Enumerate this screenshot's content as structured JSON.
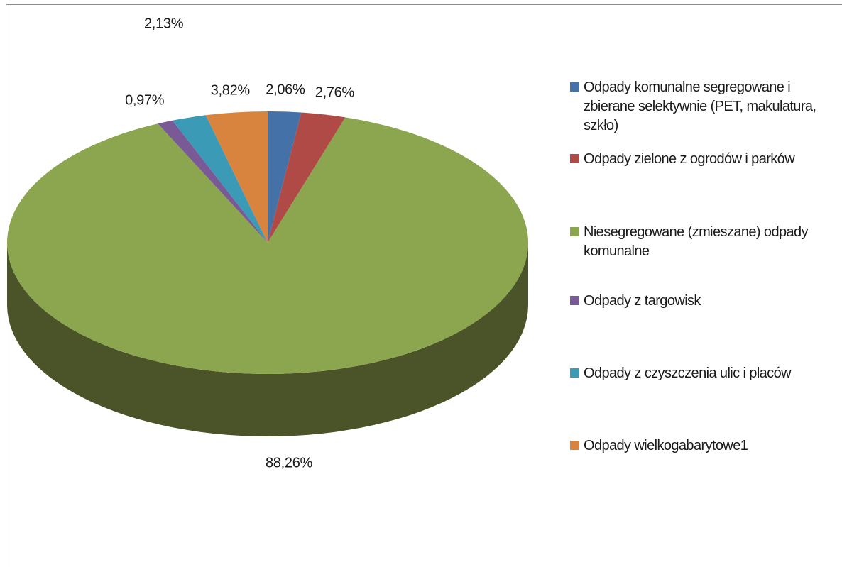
{
  "chart_data": {
    "type": "pie",
    "title": "",
    "series": [
      {
        "values": [
          2.06,
          2.76,
          88.26,
          0.97,
          2.13,
          3.82
        ]
      }
    ],
    "categories": [
      "Odpady komunalne segregowane i zbierane selektywnie (PET, makulatura, szkło)",
      "Odpady zielone z ogrodów i parków",
      "Niesegregowane (zmieszane) odpady komunalne",
      "Odpady z targowisk",
      "Odpady z czyszczenia ulic i placów",
      "Odpady wielkogabarytowe1"
    ],
    "data_labels": [
      "2,06%",
      "2,76%",
      "88,26%",
      "0,97%",
      "2,13%",
      "3,82%"
    ],
    "colors": [
      "#4472a8",
      "#b04a47",
      "#8ba64e",
      "#7a5a96",
      "#3b9ab5",
      "#d9843e"
    ],
    "side_colors": [
      "#2e4f78",
      "#7a3230",
      "#4a5428",
      "#523c66",
      "#276a7d",
      "#9a5c2a"
    ],
    "three_d": true,
    "legend_position": "right"
  }
}
